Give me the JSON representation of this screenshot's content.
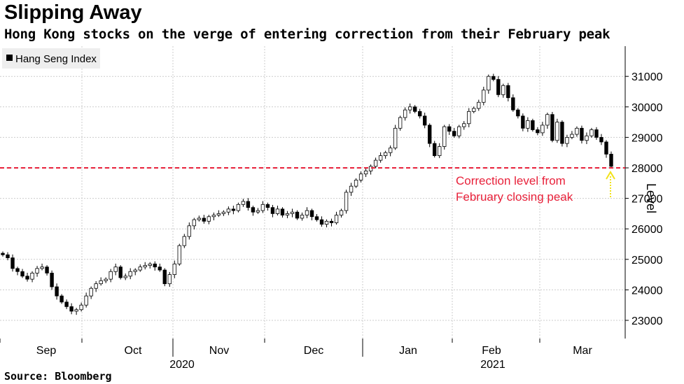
{
  "header": {
    "title": "Slipping Away",
    "subtitle": "Hong Kong stocks on the verge of entering correction from their February peak"
  },
  "footer": {
    "source": "Source: Bloomberg"
  },
  "chart_data": {
    "type": "candlestick",
    "title": "Slipping Away",
    "legend": {
      "label": "Hang Seng Index",
      "position": "top-left"
    },
    "ylabel": "Level",
    "ylim": [
      22400,
      32000
    ],
    "yticks": [
      23000,
      24000,
      25000,
      26000,
      27000,
      28000,
      29000,
      30000,
      31000
    ],
    "months": [
      "Sep",
      "Oct",
      "Nov",
      "Dec",
      "Jan",
      "Feb",
      "Mar"
    ],
    "years": [
      "2020",
      "2021"
    ],
    "annotation": {
      "text_line1": "Correction level from",
      "text_line2": "February closing peak",
      "level": 28000,
      "color": "#e8213a"
    },
    "arrow_color": "#f2e21a",
    "colors": {
      "up": "#ffffff",
      "down": "#000000",
      "grid": "#cccccc",
      "legend_bg": "#eeeeee"
    },
    "closes": [
      25150,
      25050,
      24700,
      24600,
      24450,
      24350,
      24550,
      24700,
      24750,
      24550,
      24100,
      23800,
      23600,
      23450,
      23300,
      23350,
      23500,
      23800,
      24050,
      24200,
      24300,
      24350,
      24600,
      24750,
      24400,
      24450,
      24600,
      24650,
      24750,
      24800,
      24850,
      24750,
      24650,
      24200,
      24500,
      24850,
      25450,
      25750,
      26100,
      26300,
      26350,
      26250,
      26400,
      26450,
      26500,
      26550,
      26650,
      26600,
      26800,
      26900,
      26700,
      26550,
      26600,
      26800,
      26700,
      26500,
      26650,
      26450,
      26500,
      26550,
      26350,
      26450,
      26600,
      26400,
      26300,
      26150,
      26250,
      26200,
      26450,
      26600,
      27200,
      27400,
      27600,
      27800,
      27900,
      28050,
      28250,
      28400,
      28500,
      28650,
      29300,
      29650,
      29900,
      30000,
      29850,
      29700,
      29400,
      28800,
      28400,
      28700,
      29350,
      29200,
      29050,
      29350,
      29450,
      29850,
      29950,
      30150,
      30550,
      31000,
      30900,
      30400,
      30700,
      30300,
      29900,
      29700,
      29300,
      29550,
      29250,
      29150,
      29400,
      29750,
      28900,
      29500,
      28800,
      29000,
      29100,
      29300,
      28900,
      29050,
      29250,
      29000,
      28850,
      28450,
      28050
    ],
    "opens": [
      25200,
      25150,
      25050,
      24700,
      24600,
      24450,
      24350,
      24550,
      24700,
      24750,
      24550,
      24100,
      23800,
      23600,
      23450,
      23300,
      23350,
      23500,
      23800,
      24050,
      24200,
      24300,
      24350,
      24600,
      24750,
      24400,
      24450,
      24600,
      24650,
      24750,
      24800,
      24850,
      24750,
      24650,
      24200,
      24500,
      24850,
      25450,
      25750,
      26100,
      26300,
      26350,
      26250,
      26400,
      26450,
      26500,
      26550,
      26650,
      26600,
      26800,
      26900,
      26700,
      26550,
      26600,
      26800,
      26700,
      26500,
      26650,
      26450,
      26500,
      26550,
      26350,
      26450,
      26600,
      26400,
      26300,
      26150,
      26250,
      26200,
      26450,
      26600,
      27200,
      27400,
      27600,
      27800,
      27900,
      28050,
      28250,
      28400,
      28500,
      28650,
      29300,
      29650,
      29900,
      30000,
      29850,
      29700,
      29400,
      28800,
      28400,
      28700,
      29350,
      29200,
      29050,
      29350,
      29450,
      29850,
      29950,
      30150,
      30550,
      31000,
      30900,
      30400,
      30700,
      30300,
      29900,
      29700,
      29300,
      29550,
      29250,
      29150,
      29400,
      29750,
      28900,
      29500,
      28800,
      29000,
      29100,
      29300,
      28900,
      29050,
      29250,
      29000,
      28850,
      28450
    ]
  }
}
